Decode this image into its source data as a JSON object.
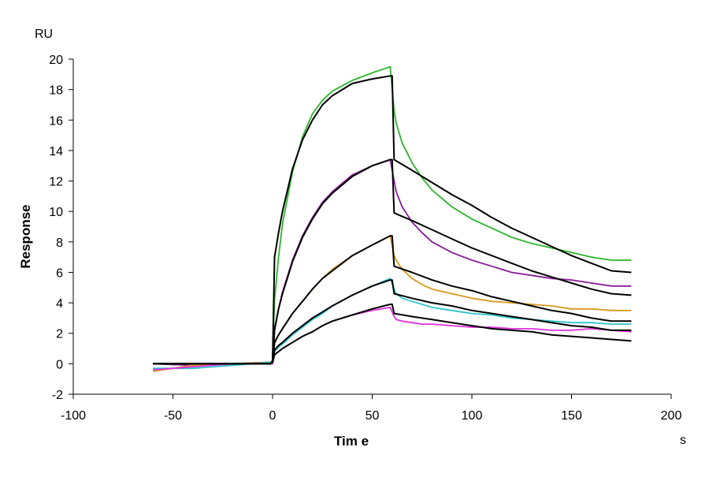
{
  "chart_data": {
    "type": "line",
    "title": "",
    "xlabel": "Tim e",
    "ylabel": "Response",
    "x_unit": "s",
    "y_unit": "RU",
    "xlim": [
      -100,
      200
    ],
    "ylim": [
      -2,
      20
    ],
    "x_ticks": [
      -100,
      -50,
      0,
      50,
      100,
      150,
      200
    ],
    "y_ticks": [
      -2,
      0,
      2,
      4,
      6,
      8,
      10,
      12,
      14,
      16,
      18,
      20
    ],
    "grid": false,
    "legend": "none",
    "series": [
      {
        "color": "#2bb52b",
        "x": [
          -60,
          -40,
          -20,
          -1,
          0,
          1,
          3,
          5,
          10,
          15,
          20,
          25,
          30,
          40,
          50,
          59,
          61,
          62,
          65,
          70,
          75,
          80,
          90,
          100,
          110,
          120,
          130,
          140,
          150,
          160,
          170,
          180
        ],
        "y": [
          0.0,
          -0.1,
          0.0,
          0.1,
          0.2,
          4.2,
          7.0,
          9.2,
          12.6,
          14.9,
          16.4,
          17.3,
          17.9,
          18.6,
          19.1,
          19.5,
          16.6,
          15.8,
          14.5,
          13.2,
          12.2,
          11.4,
          10.3,
          9.5,
          8.9,
          8.3,
          7.9,
          7.6,
          7.3,
          7.0,
          6.8,
          6.8
        ]
      },
      {
        "color": "#8b1a9c",
        "x": [
          -60,
          -40,
          -20,
          -1,
          0,
          1,
          3,
          5,
          10,
          15,
          20,
          25,
          30,
          40,
          50,
          59,
          61,
          62,
          65,
          70,
          75,
          80,
          90,
          100,
          110,
          120,
          130,
          140,
          150,
          160,
          170,
          180
        ],
        "y": [
          0.0,
          -0.1,
          0.0,
          0.1,
          0.1,
          2.3,
          3.6,
          4.7,
          6.8,
          8.4,
          9.6,
          10.6,
          11.3,
          12.4,
          13.0,
          13.4,
          12.0,
          11.3,
          10.3,
          9.3,
          8.6,
          8.0,
          7.3,
          6.8,
          6.4,
          6.0,
          5.8,
          5.6,
          5.5,
          5.3,
          5.1,
          5.1
        ]
      },
      {
        "color": "#d99a1c",
        "x": [
          -60,
          -40,
          -20,
          -1,
          0,
          1,
          3,
          5,
          10,
          15,
          20,
          25,
          30,
          40,
          50,
          59,
          61,
          62,
          65,
          70,
          75,
          80,
          90,
          100,
          110,
          120,
          130,
          140,
          150,
          160,
          170,
          180
        ],
        "y": [
          -0.5,
          -0.1,
          0.0,
          0.1,
          0.1,
          1.3,
          1.9,
          2.3,
          3.3,
          4.1,
          4.9,
          5.6,
          6.2,
          7.1,
          7.8,
          8.4,
          7.1,
          6.8,
          6.2,
          5.6,
          5.2,
          4.9,
          4.6,
          4.3,
          4.1,
          4.0,
          3.9,
          3.8,
          3.6,
          3.6,
          3.5,
          3.5
        ]
      },
      {
        "color": "#2bc4cc",
        "x": [
          -60,
          -40,
          -20,
          -1,
          0,
          1,
          3,
          5,
          10,
          15,
          20,
          25,
          30,
          40,
          50,
          59,
          61,
          62,
          65,
          70,
          75,
          80,
          90,
          100,
          110,
          120,
          130,
          140,
          150,
          160,
          170,
          180
        ],
        "y": [
          -0.3,
          -0.3,
          -0.1,
          0.1,
          0.1,
          0.8,
          1.1,
          1.3,
          1.9,
          2.4,
          2.9,
          3.3,
          3.8,
          4.5,
          5.1,
          5.6,
          4.9,
          4.6,
          4.3,
          4.1,
          3.9,
          3.7,
          3.5,
          3.3,
          3.2,
          3.0,
          2.9,
          2.8,
          2.7,
          2.7,
          2.6,
          2.6
        ]
      },
      {
        "color": "#e030e0",
        "x": [
          -60,
          -40,
          -20,
          -1,
          0,
          1,
          3,
          5,
          10,
          15,
          20,
          25,
          30,
          40,
          50,
          59,
          61,
          62,
          65,
          70,
          75,
          80,
          90,
          100,
          110,
          120,
          130,
          140,
          150,
          160,
          170,
          180
        ],
        "y": [
          -0.4,
          -0.2,
          0.0,
          0.0,
          0.0,
          0.6,
          0.8,
          1.0,
          1.4,
          1.8,
          2.1,
          2.5,
          2.8,
          3.2,
          3.5,
          3.7,
          3.1,
          2.9,
          2.8,
          2.7,
          2.6,
          2.6,
          2.5,
          2.4,
          2.4,
          2.3,
          2.3,
          2.2,
          2.2,
          2.3,
          2.2,
          2.1
        ]
      },
      {
        "color": "#000000",
        "x": [
          -60,
          -40,
          -20,
          -1,
          0,
          1,
          3,
          5,
          10,
          15,
          20,
          25,
          30,
          40,
          50,
          59,
          60,
          61,
          70,
          80,
          90,
          100,
          110,
          120,
          130,
          140,
          150,
          160,
          170,
          180
        ],
        "y": [
          0.0,
          0.0,
          0.0,
          0.0,
          0.2,
          7.0,
          8.6,
          10.0,
          12.8,
          14.7,
          16.0,
          17.0,
          17.6,
          18.4,
          18.7,
          18.9,
          18.9,
          13.4,
          12.7,
          11.9,
          11.1,
          10.4,
          9.6,
          8.9,
          8.3,
          7.7,
          7.1,
          6.6,
          6.1,
          6.0
        ]
      },
      {
        "color": "#000000",
        "x": [
          -60,
          -40,
          -20,
          -1,
          0,
          1,
          3,
          5,
          10,
          15,
          20,
          25,
          30,
          40,
          50,
          59,
          60,
          61,
          70,
          80,
          90,
          100,
          110,
          120,
          130,
          140,
          150,
          160,
          170,
          180
        ],
        "y": [
          0.0,
          0.0,
          0.0,
          0.0,
          0.1,
          2.2,
          3.6,
          4.6,
          6.7,
          8.3,
          9.5,
          10.5,
          11.2,
          12.3,
          13.0,
          13.4,
          13.4,
          9.9,
          9.4,
          8.8,
          8.2,
          7.6,
          7.1,
          6.6,
          6.1,
          5.7,
          5.3,
          4.9,
          4.6,
          4.5
        ]
      },
      {
        "color": "#000000",
        "x": [
          -60,
          -40,
          -20,
          -1,
          0,
          1,
          3,
          5,
          10,
          15,
          20,
          25,
          30,
          40,
          50,
          59,
          60,
          61,
          70,
          80,
          90,
          100,
          110,
          120,
          130,
          140,
          150,
          160,
          170,
          180
        ],
        "y": [
          0.0,
          0.0,
          0.0,
          0.0,
          0.1,
          1.4,
          1.9,
          2.3,
          3.3,
          4.1,
          4.9,
          5.6,
          6.1,
          7.1,
          7.8,
          8.4,
          8.4,
          6.4,
          6.0,
          5.5,
          5.1,
          4.8,
          4.4,
          4.1,
          3.8,
          3.5,
          3.3,
          3.0,
          2.8,
          2.8
        ]
      },
      {
        "color": "#000000",
        "x": [
          -60,
          -40,
          -20,
          -1,
          0,
          1,
          3,
          5,
          10,
          15,
          20,
          25,
          30,
          40,
          50,
          59,
          60,
          61,
          70,
          80,
          90,
          100,
          110,
          120,
          130,
          140,
          150,
          160,
          170,
          180
        ],
        "y": [
          0.0,
          0.0,
          0.0,
          0.0,
          0.1,
          0.9,
          1.2,
          1.4,
          2.0,
          2.5,
          3.0,
          3.4,
          3.8,
          4.5,
          5.1,
          5.5,
          5.5,
          4.6,
          4.3,
          4.0,
          3.8,
          3.5,
          3.3,
          3.1,
          2.9,
          2.7,
          2.5,
          2.4,
          2.2,
          2.2
        ]
      },
      {
        "color": "#000000",
        "x": [
          -60,
          -40,
          -20,
          -1,
          0,
          1,
          3,
          5,
          10,
          15,
          20,
          25,
          30,
          40,
          50,
          59,
          60,
          61,
          70,
          80,
          90,
          100,
          110,
          120,
          130,
          140,
          150,
          160,
          170,
          180
        ],
        "y": [
          0.0,
          0.0,
          0.0,
          0.0,
          0.1,
          0.6,
          0.8,
          1.0,
          1.4,
          1.8,
          2.1,
          2.5,
          2.8,
          3.2,
          3.6,
          3.9,
          3.9,
          3.3,
          3.1,
          2.9,
          2.7,
          2.5,
          2.3,
          2.2,
          2.1,
          1.9,
          1.8,
          1.7,
          1.6,
          1.5
        ]
      }
    ]
  }
}
